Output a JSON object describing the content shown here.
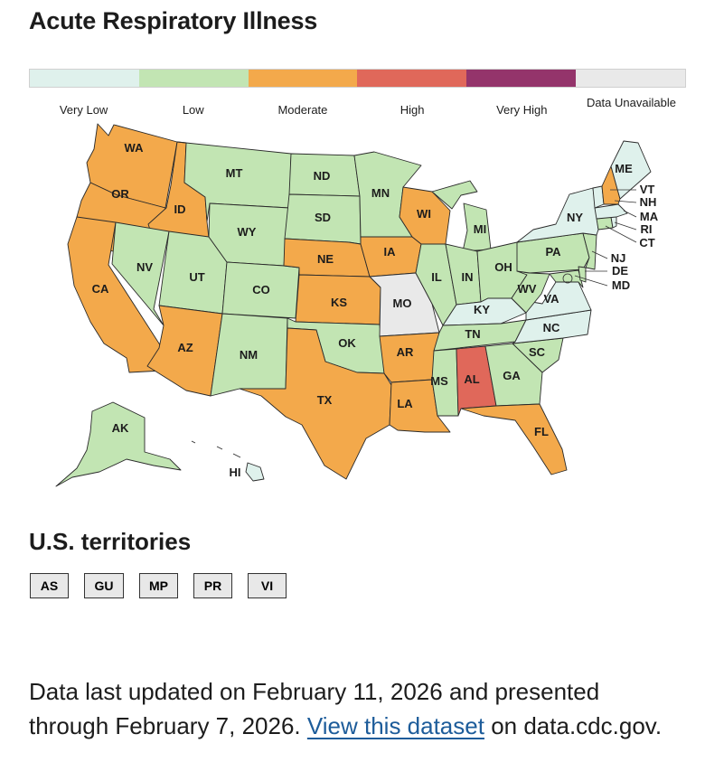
{
  "title": "Acute Respiratory Illness",
  "legend": {
    "levels": [
      {
        "label": "Very Low",
        "color": "#dff1ec"
      },
      {
        "label": "Low",
        "color": "#c2e5b3"
      },
      {
        "label": "Moderate",
        "color": "#f3a94b"
      },
      {
        "label": "High",
        "color": "#e0685a"
      },
      {
        "label": "Very High",
        "color": "#94346b"
      },
      {
        "label": "Data Unavailable",
        "color": "#e9e9e9"
      }
    ]
  },
  "map": {
    "states": [
      {
        "abbr": "WA",
        "level": "Moderate"
      },
      {
        "abbr": "OR",
        "level": "Moderate"
      },
      {
        "abbr": "CA",
        "level": "Moderate"
      },
      {
        "abbr": "ID",
        "level": "Moderate"
      },
      {
        "abbr": "NV",
        "level": "Low"
      },
      {
        "abbr": "UT",
        "level": "Low"
      },
      {
        "abbr": "AZ",
        "level": "Moderate"
      },
      {
        "abbr": "MT",
        "level": "Low"
      },
      {
        "abbr": "WY",
        "level": "Low"
      },
      {
        "abbr": "CO",
        "level": "Low"
      },
      {
        "abbr": "NM",
        "level": "Low"
      },
      {
        "abbr": "ND",
        "level": "Low"
      },
      {
        "abbr": "SD",
        "level": "Low"
      },
      {
        "abbr": "NE",
        "level": "Moderate"
      },
      {
        "abbr": "KS",
        "level": "Moderate"
      },
      {
        "abbr": "OK",
        "level": "Low"
      },
      {
        "abbr": "TX",
        "level": "Moderate"
      },
      {
        "abbr": "MN",
        "level": "Low"
      },
      {
        "abbr": "IA",
        "level": "Moderate"
      },
      {
        "abbr": "MO",
        "level": "Data Unavailable"
      },
      {
        "abbr": "AR",
        "level": "Moderate"
      },
      {
        "abbr": "LA",
        "level": "Moderate"
      },
      {
        "abbr": "WI",
        "level": "Moderate"
      },
      {
        "abbr": "IL",
        "level": "Low"
      },
      {
        "abbr": "MI",
        "level": "Low"
      },
      {
        "abbr": "IN",
        "level": "Low"
      },
      {
        "abbr": "OH",
        "level": "Low"
      },
      {
        "abbr": "KY",
        "level": "Very Low"
      },
      {
        "abbr": "TN",
        "level": "Low"
      },
      {
        "abbr": "MS",
        "level": "Low"
      },
      {
        "abbr": "AL",
        "level": "High"
      },
      {
        "abbr": "GA",
        "level": "Low"
      },
      {
        "abbr": "FL",
        "level": "Moderate"
      },
      {
        "abbr": "SC",
        "level": "Low"
      },
      {
        "abbr": "NC",
        "level": "Very Low"
      },
      {
        "abbr": "VA",
        "level": "Very Low"
      },
      {
        "abbr": "WV",
        "level": "Low"
      },
      {
        "abbr": "PA",
        "level": "Low"
      },
      {
        "abbr": "NY",
        "level": "Very Low"
      },
      {
        "abbr": "ME",
        "level": "Very Low"
      },
      {
        "abbr": "VT",
        "level": "Very Low"
      },
      {
        "abbr": "NH",
        "level": "Moderate"
      },
      {
        "abbr": "MA",
        "level": "Very Low"
      },
      {
        "abbr": "RI",
        "level": "Very Low"
      },
      {
        "abbr": "CT",
        "level": "Low"
      },
      {
        "abbr": "NJ",
        "level": "Low"
      },
      {
        "abbr": "DE",
        "level": "Low"
      },
      {
        "abbr": "MD",
        "level": "Low"
      },
      {
        "abbr": "AK",
        "level": "Low"
      },
      {
        "abbr": "HI",
        "level": "Very Low"
      }
    ]
  },
  "territories": {
    "heading": "U.S. territories",
    "items": [
      "AS",
      "GU",
      "MP",
      "PR",
      "VI"
    ]
  },
  "footer": {
    "text_before": "Data last updated on February 11, 2026 and presented through February 7, 2026.",
    "link_text": "View this dataset",
    "text_after": "on data.cdc.gov."
  }
}
